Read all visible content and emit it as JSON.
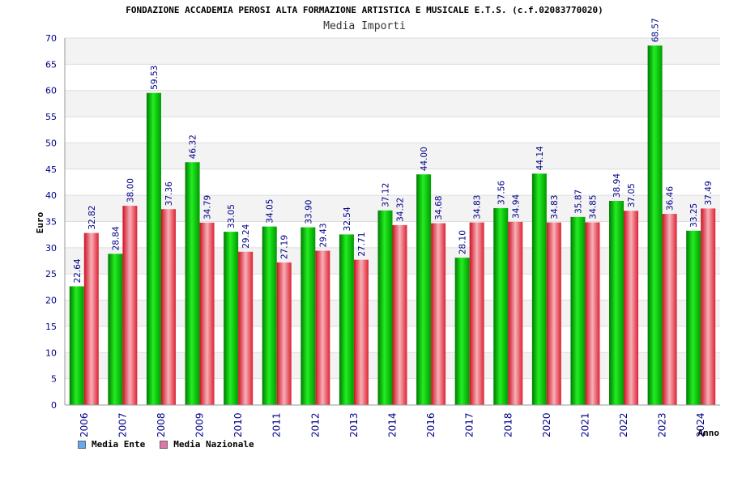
{
  "title": "FONDAZIONE ACCADEMIA PEROSI ALTA FORMAZIONE ARTISTICA E MUSICALE E.T.S. (c.f.02083770020)",
  "chart_data": {
    "type": "bar",
    "title": "Media Importi",
    "xlabel": "Anno",
    "ylabel": "Euro",
    "ylim": [
      0,
      70
    ],
    "ytick_step": 5,
    "grid": true,
    "legend_position": "bottom-left",
    "categories": [
      "2006",
      "2007",
      "2008",
      "2009",
      "2010",
      "2011",
      "2012",
      "2013",
      "2014",
      "2016",
      "2017",
      "2018",
      "2020",
      "2021",
      "2022",
      "2023",
      "2024"
    ],
    "series": [
      {
        "name": "Media Ente",
        "color": "#00cc00",
        "legend_color": "#66aaee",
        "values": [
          22.64,
          28.84,
          59.53,
          46.32,
          33.05,
          34.05,
          33.9,
          32.54,
          37.12,
          44.0,
          28.1,
          37.56,
          44.14,
          35.87,
          38.94,
          68.57,
          33.25
        ],
        "labels": [
          "22.64",
          "28.84",
          "59.53",
          "46.32",
          "33.05",
          "34.05",
          "33.90",
          "32.54",
          "37.12",
          "44.00",
          "28.10",
          "37.56",
          "44.14",
          "35.87",
          "38.94",
          "68.57",
          "33.25"
        ]
      },
      {
        "name": "Media Nazionale",
        "color": "#ee3344",
        "legend_color": "#dd77aa",
        "values": [
          32.82,
          38.0,
          37.36,
          34.79,
          29.24,
          27.19,
          29.43,
          27.71,
          34.32,
          34.68,
          34.83,
          34.94,
          34.83,
          34.85,
          37.05,
          36.46,
          37.49
        ],
        "labels": [
          "32.82",
          "38.00",
          "37.36",
          "34.79",
          "29.24",
          "27.19",
          "29.43",
          "27.71",
          "34.32",
          "34.68",
          "34.83",
          "34.94",
          "34.83",
          "34.85",
          "37.05",
          "36.46",
          "37.49"
        ]
      }
    ]
  }
}
